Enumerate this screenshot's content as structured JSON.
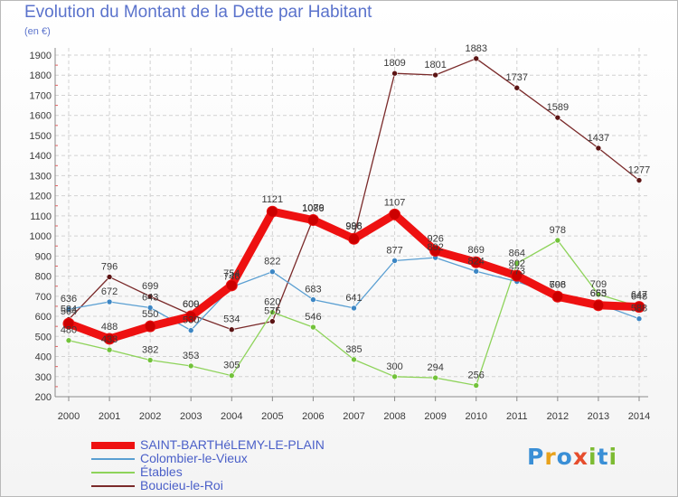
{
  "title": "Evolution du Montant de la Dette par Habitant",
  "unit_label": "(en €)",
  "logo": {
    "p": "P",
    "r": "r",
    "o": "o",
    "x": "x",
    "i1": "i",
    "t": "t",
    "i2": "i"
  },
  "colors": {
    "grid": "#d2d2d2",
    "axis": "#8a8a8a",
    "label": "#3a3a3a",
    "tick_accent": "#e06060"
  },
  "chart_data": {
    "type": "line",
    "title": "Evolution du Montant de la Dette par Habitant",
    "ylabel": "(en €)",
    "x": [
      2000,
      2001,
      2002,
      2003,
      2004,
      2005,
      2006,
      2007,
      2008,
      2009,
      2010,
      2011,
      2012,
      2013,
      2014
    ],
    "ylim": [
      200,
      1900
    ],
    "yticks": [
      200,
      300,
      400,
      500,
      600,
      700,
      800,
      900,
      1000,
      1100,
      1200,
      1300,
      1400,
      1500,
      1600,
      1700,
      1800,
      1900
    ],
    "grid": true,
    "legend_position": "bottom-left",
    "series": [
      {
        "name": "SAINT-BARTHéLEMY-LE-PLAIN",
        "color": "#ee1111",
        "marker_color": "#cc0000",
        "values": [
          564,
          488,
          550,
          600,
          754,
          1121,
          1079,
          986,
          1107,
          926,
          869,
          802,
          698,
          655,
          647
        ]
      },
      {
        "name": "Colombier-le-Vieux",
        "color": "#5a9fd2",
        "marker_color": "#3c86c4",
        "values": [
          636,
          672,
          643,
          530,
          746,
          822,
          683,
          641,
          877,
          892,
          824,
          773,
          706,
          663,
          588
        ]
      },
      {
        "name": "Étables",
        "color": "#8ed35a",
        "marker_color": "#72c23a",
        "values": [
          480,
          433,
          382,
          353,
          305,
          620,
          546,
          385,
          300,
          294,
          256,
          864,
          978,
          709,
          648
        ]
      },
      {
        "name": "Boucieu-le-Roi",
        "color": "#7a2a2a",
        "marker_color": "#5c1414",
        "values": [
          584,
          796,
          699,
          609,
          534,
          575,
          1086,
          998,
          1809,
          1801,
          1883,
          1737,
          1589,
          1437,
          1277
        ]
      }
    ]
  }
}
